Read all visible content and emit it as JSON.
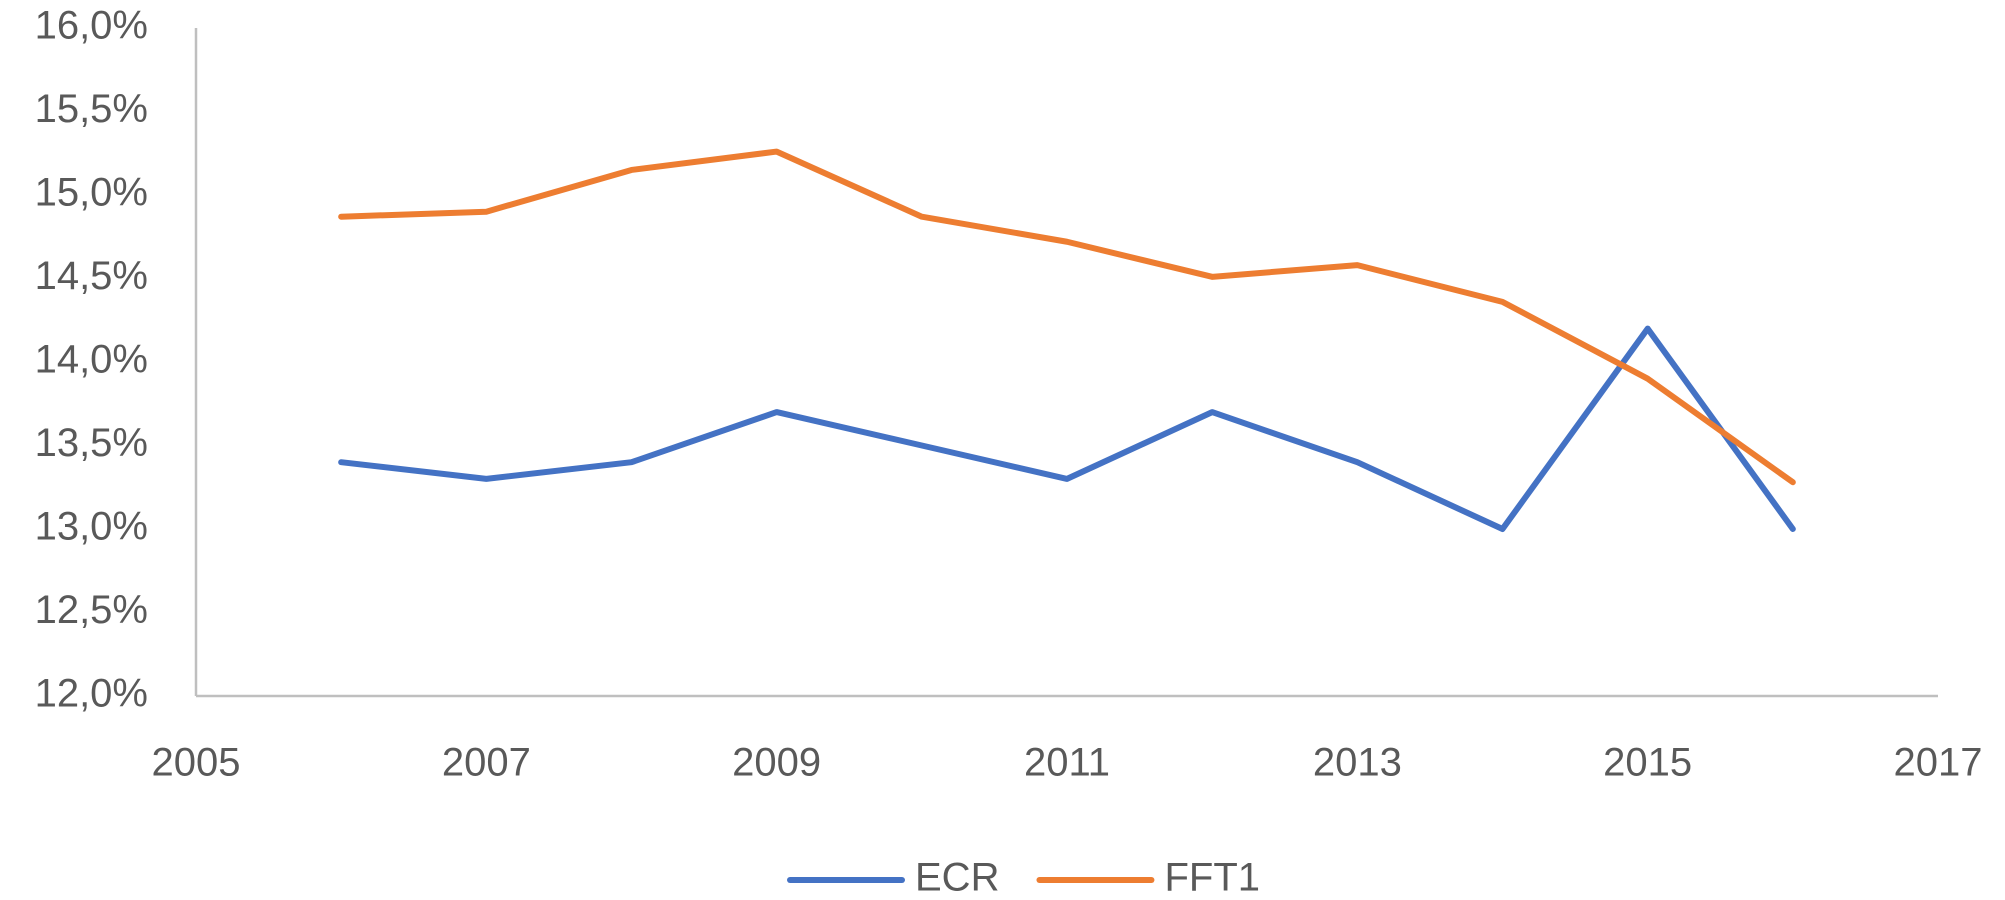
{
  "chart_data": {
    "type": "line",
    "x": [
      2006,
      2007,
      2008,
      2009,
      2010,
      2011,
      2012,
      2013,
      2014,
      2015,
      2016
    ],
    "series": [
      {
        "name": "ECR",
        "color": "#4472c4",
        "values": [
          13.4,
          13.3,
          13.4,
          13.7,
          13.5,
          13.3,
          13.7,
          13.4,
          13.0,
          14.2,
          13.0
        ]
      },
      {
        "name": "FFT1",
        "color": "#ed7d31",
        "values": [
          14.87,
          14.9,
          15.15,
          15.26,
          14.87,
          14.72,
          14.51,
          14.58,
          14.36,
          13.9,
          13.28
        ]
      }
    ],
    "xlim": [
      2005,
      2017
    ],
    "xticks": [
      2005,
      2007,
      2009,
      2011,
      2013,
      2015,
      2017
    ],
    "ylim": [
      12,
      16
    ],
    "yticks": [
      {
        "value": 12,
        "label": "12,0%"
      },
      {
        "value": 12.5,
        "label": "12,5%"
      },
      {
        "value": 13,
        "label": "13,0%"
      },
      {
        "value": 13.5,
        "label": "13,5%"
      },
      {
        "value": 14,
        "label": "14,0%"
      },
      {
        "value": 14.5,
        "label": "14,5%"
      },
      {
        "value": 15,
        "label": "15,0%"
      },
      {
        "value": 15.5,
        "label": "15,5%"
      },
      {
        "value": 16,
        "label": "16,0%"
      }
    ],
    "grid": false,
    "legend": "bottom"
  }
}
